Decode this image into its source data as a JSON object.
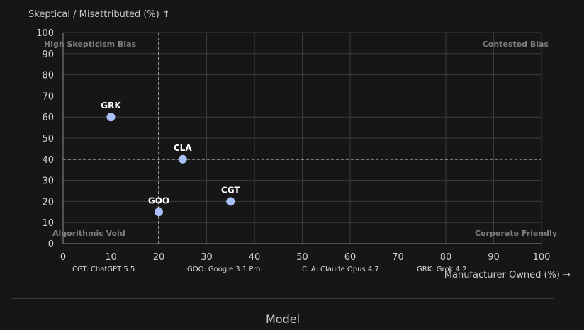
{
  "chart_data": {
    "type": "scatter",
    "title": "",
    "xlabel": "Manufacturer Owned (%) →",
    "ylabel": "Skeptical / Misattributed (%) ↑",
    "xlim": [
      0,
      100
    ],
    "ylim": [
      0,
      100
    ],
    "x_ticks": [
      0,
      10,
      20,
      30,
      40,
      50,
      60,
      70,
      80,
      90,
      100
    ],
    "y_ticks": [
      0,
      10,
      20,
      30,
      40,
      50,
      60,
      70,
      80,
      90,
      100
    ],
    "grid": true,
    "reference_lines": {
      "x": 20,
      "y": 40
    },
    "quadrant_labels": {
      "top_left": "High Skepticism Bias",
      "top_right": "Contested Bias",
      "bottom_left": "Algorithmic Void",
      "bottom_right": "Corporate Friendly"
    },
    "points": [
      {
        "label": "GRK",
        "x": 10,
        "y": 60
      },
      {
        "label": "CLA",
        "x": 25,
        "y": 40
      },
      {
        "label": "CGT",
        "x": 35,
        "y": 20
      },
      {
        "label": "GOO",
        "x": 20,
        "y": 15
      }
    ],
    "legend": [
      "CGT: ChatGPT 5.5",
      "GOO: Google 3.1 Pro",
      "CLA: Claude Opus 4.7",
      "GRK: Grok 4.2"
    ],
    "colors": {
      "point": "#a8c0f5",
      "grid": "#3c3c3c",
      "axis": "#8a8a8a",
      "reference": "#d8d8d8"
    }
  },
  "footer": {
    "label": "Model"
  }
}
